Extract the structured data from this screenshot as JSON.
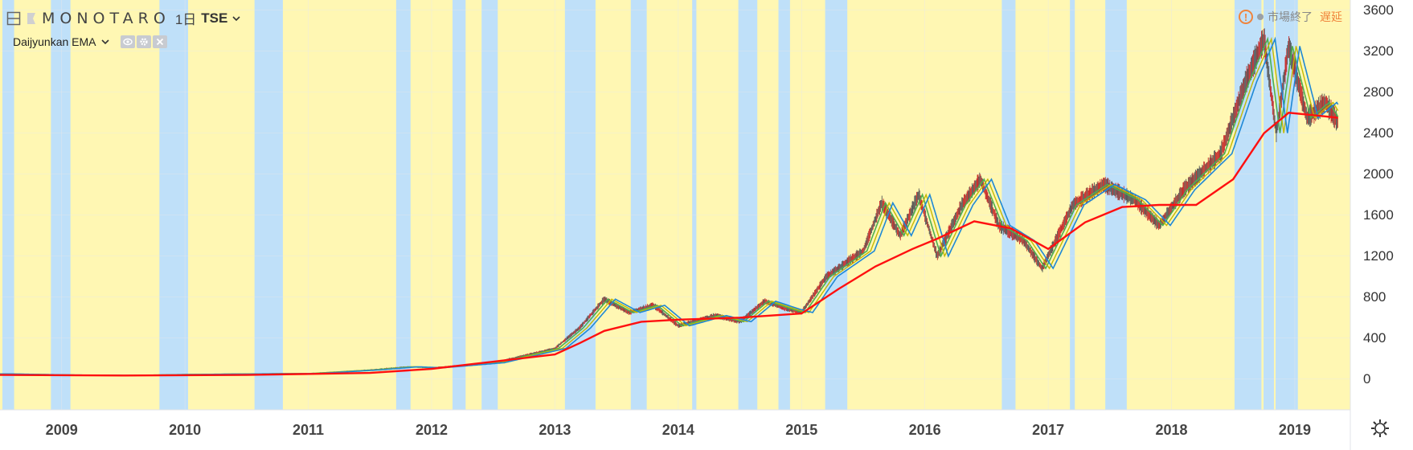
{
  "header": {
    "symbol": "MONOTARO",
    "timeframe": "1日",
    "exchange": "TSE",
    "indicator_name": "Daijyunkan EMA",
    "market_status": "市場終了",
    "delay_label": "遅延"
  },
  "colors": {
    "bull_band": "#fff7b3",
    "bear_band": "#bfe0f9",
    "ema_long": "#ff1010",
    "ema_short": "#1e88d6",
    "ema_fast": "#4caf50",
    "accent_orange": "#f0843c"
  },
  "icons": [
    "collapse-icon",
    "flag-icon",
    "chevron-down-icon",
    "eye-icon",
    "gear-icon",
    "close-icon",
    "warning-icon",
    "status-dot-icon",
    "settings-icon"
  ],
  "y_axis": {
    "ticks": [
      "3600",
      "3200",
      "2800",
      "2400",
      "2000",
      "1600",
      "1200",
      "800",
      "400",
      "0"
    ]
  },
  "x_axis": {
    "ticks": [
      "2009",
      "2010",
      "2011",
      "2012",
      "2013",
      "2014",
      "2015",
      "2016",
      "2017",
      "2018",
      "2019"
    ]
  },
  "chart_data": {
    "type": "line",
    "title": "MONOTARO · 1日 · TSE",
    "xlabel": "",
    "ylabel": "",
    "ylim": [
      -300,
      3700
    ],
    "xlim": [
      2008.5,
      2019.45
    ],
    "grid": true,
    "series": [
      {
        "name": "price",
        "x": [
          2008.5,
          2009.0,
          2009.5,
          2010.0,
          2010.5,
          2011.0,
          2011.5,
          2011.8,
          2012.0,
          2012.5,
          2013.0,
          2013.2,
          2013.4,
          2013.6,
          2013.8,
          2014.0,
          2014.3,
          2014.5,
          2014.7,
          2014.9,
          2015.0,
          2015.2,
          2015.5,
          2015.65,
          2015.8,
          2015.95,
          2016.1,
          2016.3,
          2016.45,
          2016.6,
          2016.8,
          2016.95,
          2017.2,
          2017.45,
          2017.7,
          2017.9,
          2018.1,
          2018.4,
          2018.6,
          2018.75,
          2018.85,
          2018.95,
          2019.1,
          2019.25,
          2019.35
        ],
        "y": [
          50,
          40,
          35,
          45,
          50,
          55,
          90,
          120,
          110,
          160,
          300,
          500,
          780,
          650,
          720,
          520,
          620,
          560,
          760,
          680,
          650,
          1000,
          1250,
          1720,
          1400,
          1800,
          1200,
          1700,
          1950,
          1500,
          1350,
          1080,
          1700,
          1900,
          1750,
          1500,
          1850,
          2200,
          2900,
          3320,
          2400,
          3250,
          2550,
          2700,
          2500
        ]
      },
      {
        "name": "ema_long",
        "x": [
          2008.5,
          2009.5,
          2010.5,
          2011.5,
          2012.0,
          2012.5,
          2013.0,
          2013.2,
          2013.4,
          2013.7,
          2014.0,
          2014.5,
          2015.0,
          2015.3,
          2015.6,
          2015.9,
          2016.1,
          2016.4,
          2016.7,
          2017.0,
          2017.3,
          2017.6,
          2017.9,
          2018.2,
          2018.5,
          2018.75,
          2018.95,
          2019.2,
          2019.35
        ],
        "y": [
          40,
          35,
          40,
          60,
          100,
          170,
          240,
          350,
          470,
          560,
          580,
          600,
          640,
          880,
          1100,
          1270,
          1370,
          1540,
          1470,
          1270,
          1530,
          1680,
          1700,
          1700,
          1950,
          2400,
          2600,
          2570,
          2550
        ]
      }
    ]
  }
}
